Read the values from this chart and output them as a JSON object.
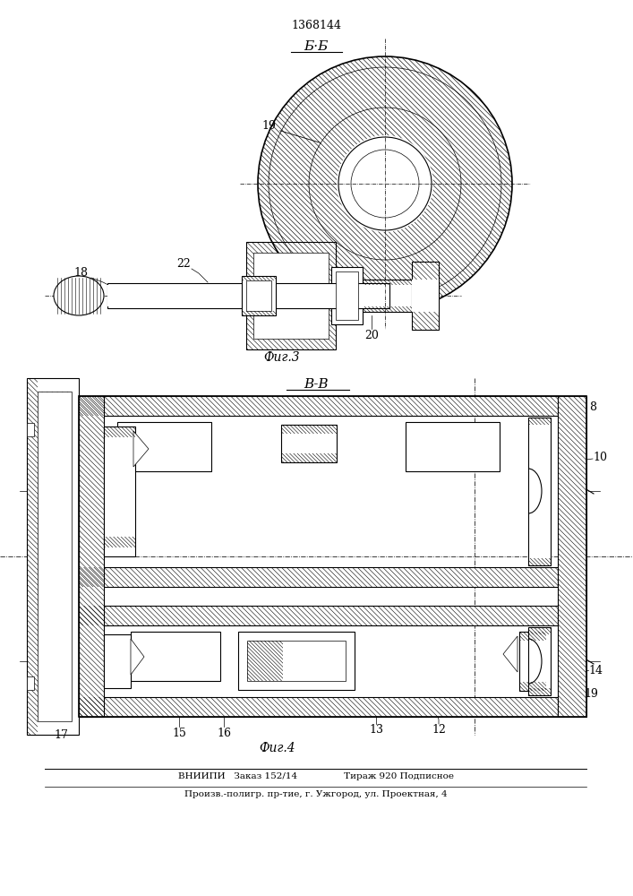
{
  "patent_number": "1368144",
  "fig3_label": "Фиг.3",
  "fig4_label": "Фиг.4",
  "section_bb": "Б·Б",
  "section_vv": "В-В",
  "footer_line1": "ВНИИПИ   Заказ 152/14                Тираж 920 Подписное",
  "footer_line2": "Произв.-полигр. пр-тие, г. Ужгород, ул. Проектная, 4",
  "bg_color": "#ffffff",
  "lc": "#000000"
}
